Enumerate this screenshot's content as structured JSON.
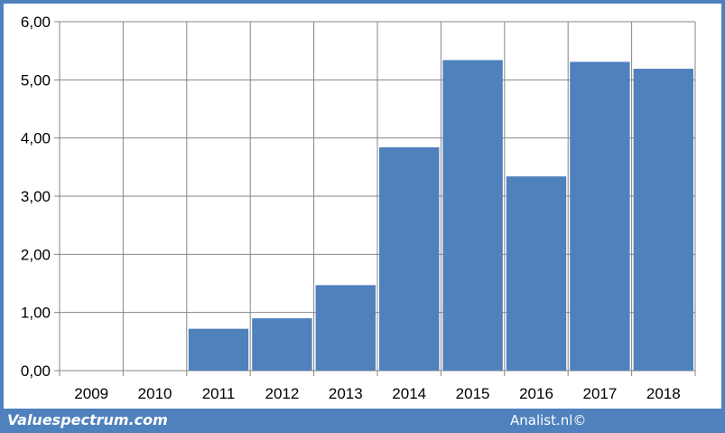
{
  "chart_data": {
    "type": "bar",
    "categories": [
      "2009",
      "2010",
      "2011",
      "2012",
      "2013",
      "2014",
      "2015",
      "2016",
      "2017",
      "2018"
    ],
    "values": [
      0,
      0,
      0.72,
      0.9,
      1.47,
      3.84,
      5.34,
      3.34,
      5.31,
      5.19
    ],
    "title": "",
    "xlabel": "",
    "ylabel": "",
    "ylim": [
      0,
      6
    ],
    "y_ticks": [
      "0,00",
      "1,00",
      "2,00",
      "3,00",
      "4,00",
      "5,00",
      "6,00"
    ],
    "grid": true,
    "legend": "none",
    "colors": {
      "bar": "#4f81bd",
      "frame": "#4f81bd",
      "grid": "#868686"
    }
  },
  "footer": {
    "left": "Valuespectrum.com",
    "right": "Analist.nl©"
  }
}
